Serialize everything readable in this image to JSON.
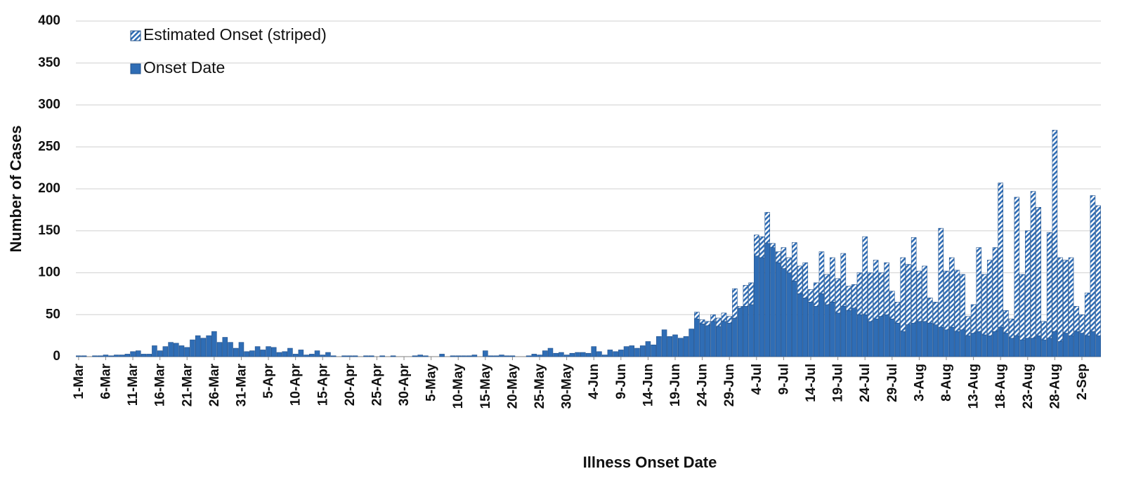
{
  "chart_data": {
    "type": "stacked_bar",
    "xlabel": "Illness Onset Date",
    "ylabel": "Number of Cases",
    "ylim": [
      0,
      400
    ],
    "yticks": [
      0,
      50,
      100,
      150,
      200,
      250,
      300,
      350,
      400
    ],
    "grid": true,
    "legend": "upper left",
    "categories": [
      "1-Mar",
      null,
      null,
      null,
      null,
      "6-Mar",
      null,
      null,
      null,
      null,
      "11-Mar",
      null,
      null,
      null,
      null,
      "16-Mar",
      null,
      null,
      null,
      null,
      "21-Mar",
      null,
      null,
      null,
      null,
      "26-Mar",
      null,
      null,
      null,
      null,
      "31-Mar",
      null,
      null,
      null,
      null,
      "5-Apr",
      null,
      null,
      null,
      null,
      "10-Apr",
      null,
      null,
      null,
      null,
      "15-Apr",
      null,
      null,
      null,
      null,
      "20-Apr",
      null,
      null,
      null,
      null,
      "25-Apr",
      null,
      null,
      null,
      null,
      "30-Apr",
      null,
      null,
      null,
      null,
      "5-May",
      null,
      null,
      null,
      null,
      "10-May",
      null,
      null,
      null,
      null,
      "15-May",
      null,
      null,
      null,
      null,
      "20-May",
      null,
      null,
      null,
      null,
      "25-May",
      null,
      null,
      null,
      null,
      "30-May",
      null,
      null,
      null,
      null,
      "4-Jun",
      null,
      null,
      null,
      null,
      "9-Jun",
      null,
      null,
      null,
      null,
      "14-Jun",
      null,
      null,
      null,
      null,
      "19-Jun",
      null,
      null,
      null,
      null,
      "24-Jun",
      null,
      null,
      null,
      null,
      "29-Jun",
      null,
      null,
      null,
      null,
      "4-Jul",
      null,
      null,
      null,
      null,
      "9-Jul",
      null,
      null,
      null,
      null,
      "14-Jul",
      null,
      null,
      null,
      null,
      "19-Jul",
      null,
      null,
      null,
      null,
      "24-Jul",
      null,
      null,
      null,
      null,
      "29-Jul",
      null,
      null,
      null,
      null,
      "3-Aug",
      null,
      null,
      null,
      null,
      "8-Aug",
      null,
      null,
      null,
      null,
      "13-Aug",
      null,
      null,
      null,
      null,
      "18-Aug",
      null,
      null,
      null,
      null,
      "23-Aug",
      null,
      null,
      null,
      null,
      "28-Aug",
      null,
      null,
      null,
      null,
      "2-Sep",
      null,
      null,
      null
    ],
    "series": [
      {
        "name": "Onset Date",
        "color": "#2f6db5",
        "pattern": "solid",
        "values": [
          1,
          1,
          0,
          1,
          1,
          2,
          1,
          2,
          2,
          3,
          6,
          7,
          3,
          3,
          13,
          7,
          12,
          17,
          16,
          13,
          11,
          20,
          25,
          22,
          25,
          30,
          17,
          23,
          17,
          10,
          17,
          6,
          7,
          12,
          8,
          12,
          11,
          5,
          6,
          10,
          3,
          8,
          2,
          3,
          7,
          2,
          5,
          1,
          0,
          1,
          1,
          1,
          0,
          1,
          1,
          0,
          1,
          0,
          1,
          0,
          0,
          0,
          1,
          2,
          1,
          0,
          0,
          3,
          0,
          1,
          1,
          1,
          1,
          2,
          0,
          7,
          1,
          1,
          2,
          1,
          1,
          0,
          0,
          1,
          3,
          2,
          7,
          10,
          4,
          5,
          2,
          4,
          5,
          5,
          4,
          12,
          6,
          2,
          8,
          6,
          8,
          12,
          13,
          10,
          13,
          18,
          14,
          24,
          32,
          24,
          26,
          22,
          24,
          33,
          45,
          39,
          37,
          42,
          36,
          42,
          40,
          46,
          58,
          60,
          62,
          120,
          118,
          135,
          130,
          112,
          105,
          100,
          90,
          75,
          70,
          65,
          60,
          75,
          62,
          65,
          52,
          60,
          55,
          58,
          50,
          50,
          42,
          45,
          48,
          50,
          45,
          40,
          30,
          38,
          40,
          42,
          42,
          40,
          38,
          35,
          32,
          35,
          30,
          32,
          25,
          28,
          30,
          26,
          25,
          30,
          35,
          28,
          22,
          25,
          20,
          22,
          22,
          25,
          20,
          22,
          30,
          18,
          28,
          25,
          30,
          28,
          25,
          30,
          25
        ]
      },
      {
        "name": "Estimated Onset (striped)",
        "color": "#2f6db5",
        "pattern": "striped",
        "values": [
          0,
          0,
          0,
          0,
          0,
          0,
          0,
          0,
          0,
          0,
          0,
          0,
          0,
          0,
          0,
          0,
          0,
          0,
          0,
          0,
          0,
          0,
          0,
          0,
          0,
          0,
          0,
          0,
          0,
          0,
          0,
          0,
          0,
          0,
          0,
          0,
          0,
          0,
          0,
          0,
          0,
          0,
          0,
          0,
          0,
          0,
          0,
          0,
          0,
          0,
          0,
          0,
          0,
          0,
          0,
          0,
          0,
          0,
          0,
          0,
          0,
          0,
          0,
          0,
          0,
          0,
          0,
          0,
          0,
          0,
          0,
          0,
          0,
          0,
          0,
          0,
          0,
          0,
          0,
          0,
          0,
          0,
          0,
          0,
          0,
          0,
          0,
          0,
          0,
          0,
          0,
          0,
          0,
          0,
          0,
          0,
          0,
          0,
          0,
          0,
          0,
          0,
          0,
          0,
          0,
          0,
          0,
          0,
          0,
          0,
          0,
          0,
          0,
          0,
          8,
          5,
          5,
          8,
          10,
          10,
          8,
          35,
          2,
          25,
          26,
          25,
          25,
          37,
          5,
          13,
          25,
          18,
          46,
          33,
          42,
          15,
          28,
          50,
          36,
          53,
          41,
          63,
          29,
          28,
          50,
          93,
          58,
          70,
          52,
          62,
          33,
          25,
          88,
          72,
          102,
          60,
          66,
          30,
          27,
          118,
          70,
          83,
          73,
          66,
          23,
          34,
          100,
          72,
          90,
          100,
          172,
          27,
          23,
          165,
          78,
          128,
          175,
          153,
          22,
          126,
          240,
          100,
          87,
          93,
          30,
          22,
          51,
          162,
          155
        ]
      }
    ]
  }
}
